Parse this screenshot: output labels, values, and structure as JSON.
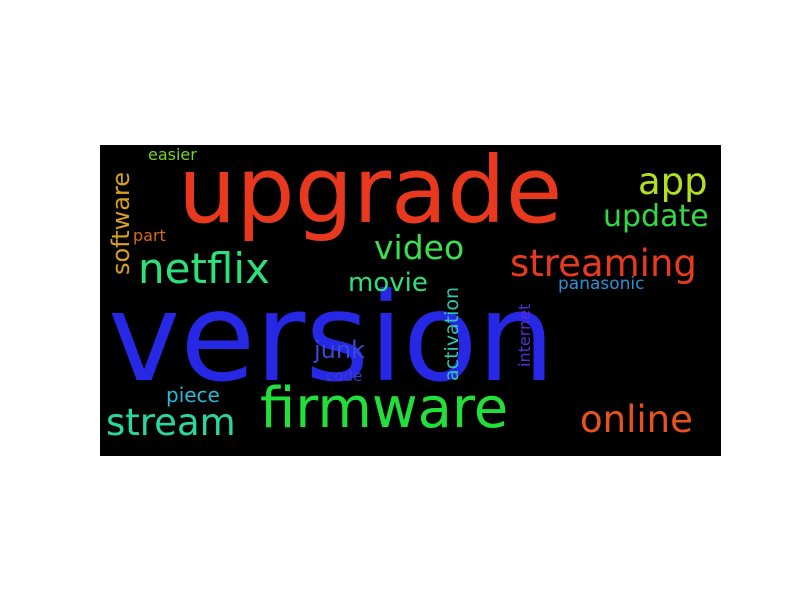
{
  "words": [
    {
      "key": "version",
      "text": "version",
      "color": "#2727e6"
    },
    {
      "key": "upgrade",
      "text": "upgrade",
      "color": "#e8391e"
    },
    {
      "key": "firmware",
      "text": "firmware",
      "color": "#22e03a"
    },
    {
      "key": "netflix",
      "text": "netflix",
      "color": "#2ee07a"
    },
    {
      "key": "streaming",
      "text": "streaming",
      "color": "#e83a1e"
    },
    {
      "key": "stream",
      "text": "stream",
      "color": "#28d8a0"
    },
    {
      "key": "online",
      "text": "online",
      "color": "#e8521c"
    },
    {
      "key": "video",
      "text": "video",
      "color": "#3ae050"
    },
    {
      "key": "update",
      "text": "update",
      "color": "#34d848"
    },
    {
      "key": "app",
      "text": "app",
      "color": "#b2e020"
    },
    {
      "key": "movie",
      "text": "movie",
      "color": "#2ee07a"
    },
    {
      "key": "software",
      "text": "software",
      "color": "#d8a020"
    },
    {
      "key": "junk",
      "text": "junk",
      "color": "#3a4ad8"
    },
    {
      "key": "piece",
      "text": "piece",
      "color": "#2cb8d8"
    },
    {
      "key": "activation",
      "text": "activation",
      "color": "#2cc8b0"
    },
    {
      "key": "internet",
      "text": "internet",
      "color": "#5a2cd8"
    },
    {
      "key": "panasonic",
      "text": "panasonic",
      "color": "#2a90d8"
    },
    {
      "key": "easier",
      "text": "easier",
      "color": "#72d820"
    },
    {
      "key": "part",
      "text": "part",
      "color": "#d86a18"
    },
    {
      "key": "code",
      "text": "code",
      "color": "#3a3ad0"
    }
  ]
}
